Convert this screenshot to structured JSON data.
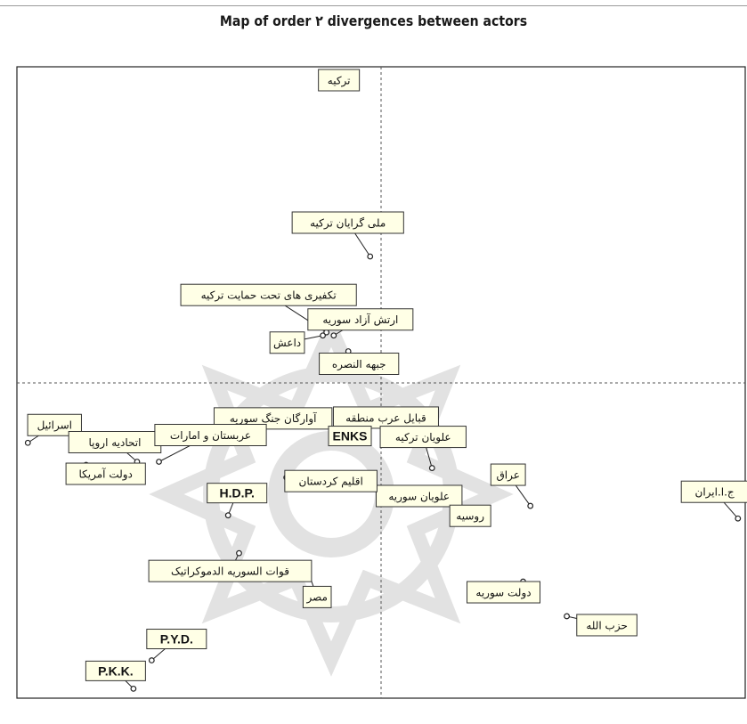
{
  "chart_data": {
    "type": "scatter",
    "title": "Map of order ۲ divergences between actors",
    "xlabel": "",
    "ylabel": "",
    "xlim": [
      -100,
      100
    ],
    "ylim": [
      -100,
      100
    ],
    "grid": false,
    "axes_crossing": "origin-dashed",
    "colors": {
      "frame": "#222222",
      "label_fill": "#ffffe6",
      "watermark": "#bdbdbd"
    },
    "points": [
      {
        "label": "ترکیه",
        "x": -15,
        "y": 97
      },
      {
        "label": "ملی گرایان ترکیه",
        "x": -3,
        "y": 40
      },
      {
        "label": "تکفیری های تحت حمایت ترکیه",
        "x": -15,
        "y": 16
      },
      {
        "label": "ارتش آزاد سوریه",
        "x": -13,
        "y": 15
      },
      {
        "label": "داعش",
        "x": -16,
        "y": 15
      },
      {
        "label": "جبهه النصره",
        "x": -9,
        "y": 10
      },
      {
        "label": "آوارگان جنگ سوریه",
        "x": -15,
        "y": -9
      },
      {
        "label": "قبایل عرب منطقه",
        "x": -6,
        "y": -11
      },
      {
        "label": "ENKS",
        "x": -11,
        "y": -14
      },
      {
        "label": "علویان ترکیه",
        "x": 14,
        "y": -27
      },
      {
        "label": "عراق",
        "x": 41,
        "y": -39
      },
      {
        "label": "علویان سوریه",
        "x": 19,
        "y": -37
      },
      {
        "label": "روسیه",
        "x": 24,
        "y": -43
      },
      {
        "label": "دولت سوریه",
        "x": 39,
        "y": -63
      },
      {
        "label": "حزب الله",
        "x": 51,
        "y": -74
      },
      {
        "label": "ج.ا.ایران",
        "x": 98,
        "y": -43
      },
      {
        "label": "اسرائیل",
        "x": -97,
        "y": -19
      },
      {
        "label": "دولت آمریکا",
        "x": -81,
        "y": -26
      },
      {
        "label": "اتحادیه اروپا",
        "x": -67,
        "y": -25
      },
      {
        "label": "عربستان و امارات",
        "x": -61,
        "y": -25
      },
      {
        "label": "H.D.P.",
        "x": -42,
        "y": -42
      },
      {
        "label": "اقلیم کردستان",
        "x": -26,
        "y": -30
      },
      {
        "label": "قوات السوریه الدموکراتیک",
        "x": -39,
        "y": -54
      },
      {
        "label": "مصر",
        "x": -20,
        "y": -60
      },
      {
        "label": "P.Y.D.",
        "x": -63,
        "y": -88
      },
      {
        "label": "P.K.K.",
        "x": -68,
        "y": -97
      }
    ]
  }
}
